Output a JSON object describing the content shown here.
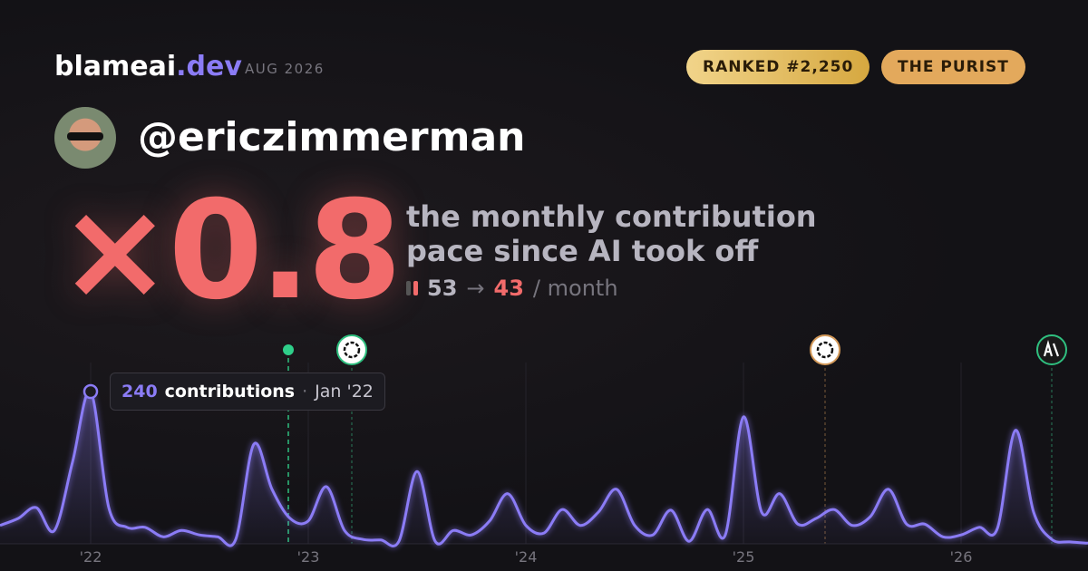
{
  "header": {
    "brand": "blameai",
    "brand_tld": ".dev",
    "date": "AUG 2026",
    "badges": [
      "RANKED #2,250",
      "THE PURIST"
    ]
  },
  "profile": {
    "username": "@ericzimmerman"
  },
  "headline": {
    "multiplier": "×0.8",
    "description": [
      "the monthly contribution",
      "pace since AI took off"
    ],
    "before": "53",
    "arrow": "→",
    "after": "43",
    "unit": "/ month"
  },
  "chart_data": {
    "type": "area",
    "color": "#8b7cf6",
    "categories": [
      null,
      null,
      null,
      null,
      null,
      "'22",
      null,
      null,
      null,
      null,
      null,
      null,
      null,
      null,
      null,
      null,
      null,
      "'23",
      null,
      null,
      null,
      null,
      null,
      null,
      null,
      null,
      null,
      null,
      null,
      "'24",
      null,
      null,
      null,
      null,
      null,
      null,
      null,
      null,
      null,
      null,
      null,
      "'25",
      null,
      null,
      null,
      null,
      null,
      null,
      null,
      null,
      null,
      null,
      null,
      "'26",
      null,
      null,
      null,
      null,
      null,
      null,
      null
    ],
    "values": [
      29,
      40,
      57,
      21,
      129,
      240,
      57,
      26,
      26,
      11,
      21,
      14,
      11,
      7,
      157,
      86,
      40,
      36,
      90,
      21,
      7,
      6,
      4,
      114,
      4,
      21,
      14,
      36,
      79,
      29,
      17,
      54,
      29,
      50,
      86,
      29,
      14,
      53,
      4,
      54,
      14,
      200,
      50,
      79,
      31,
      40,
      54,
      29,
      43,
      86,
      31,
      31,
      11,
      14,
      26,
      24,
      179,
      50,
      7,
      3,
      1
    ],
    "ylim": [
      0,
      240
    ],
    "tooltip": {
      "label": "contributions",
      "date": "Jan '22"
    }
  }
}
